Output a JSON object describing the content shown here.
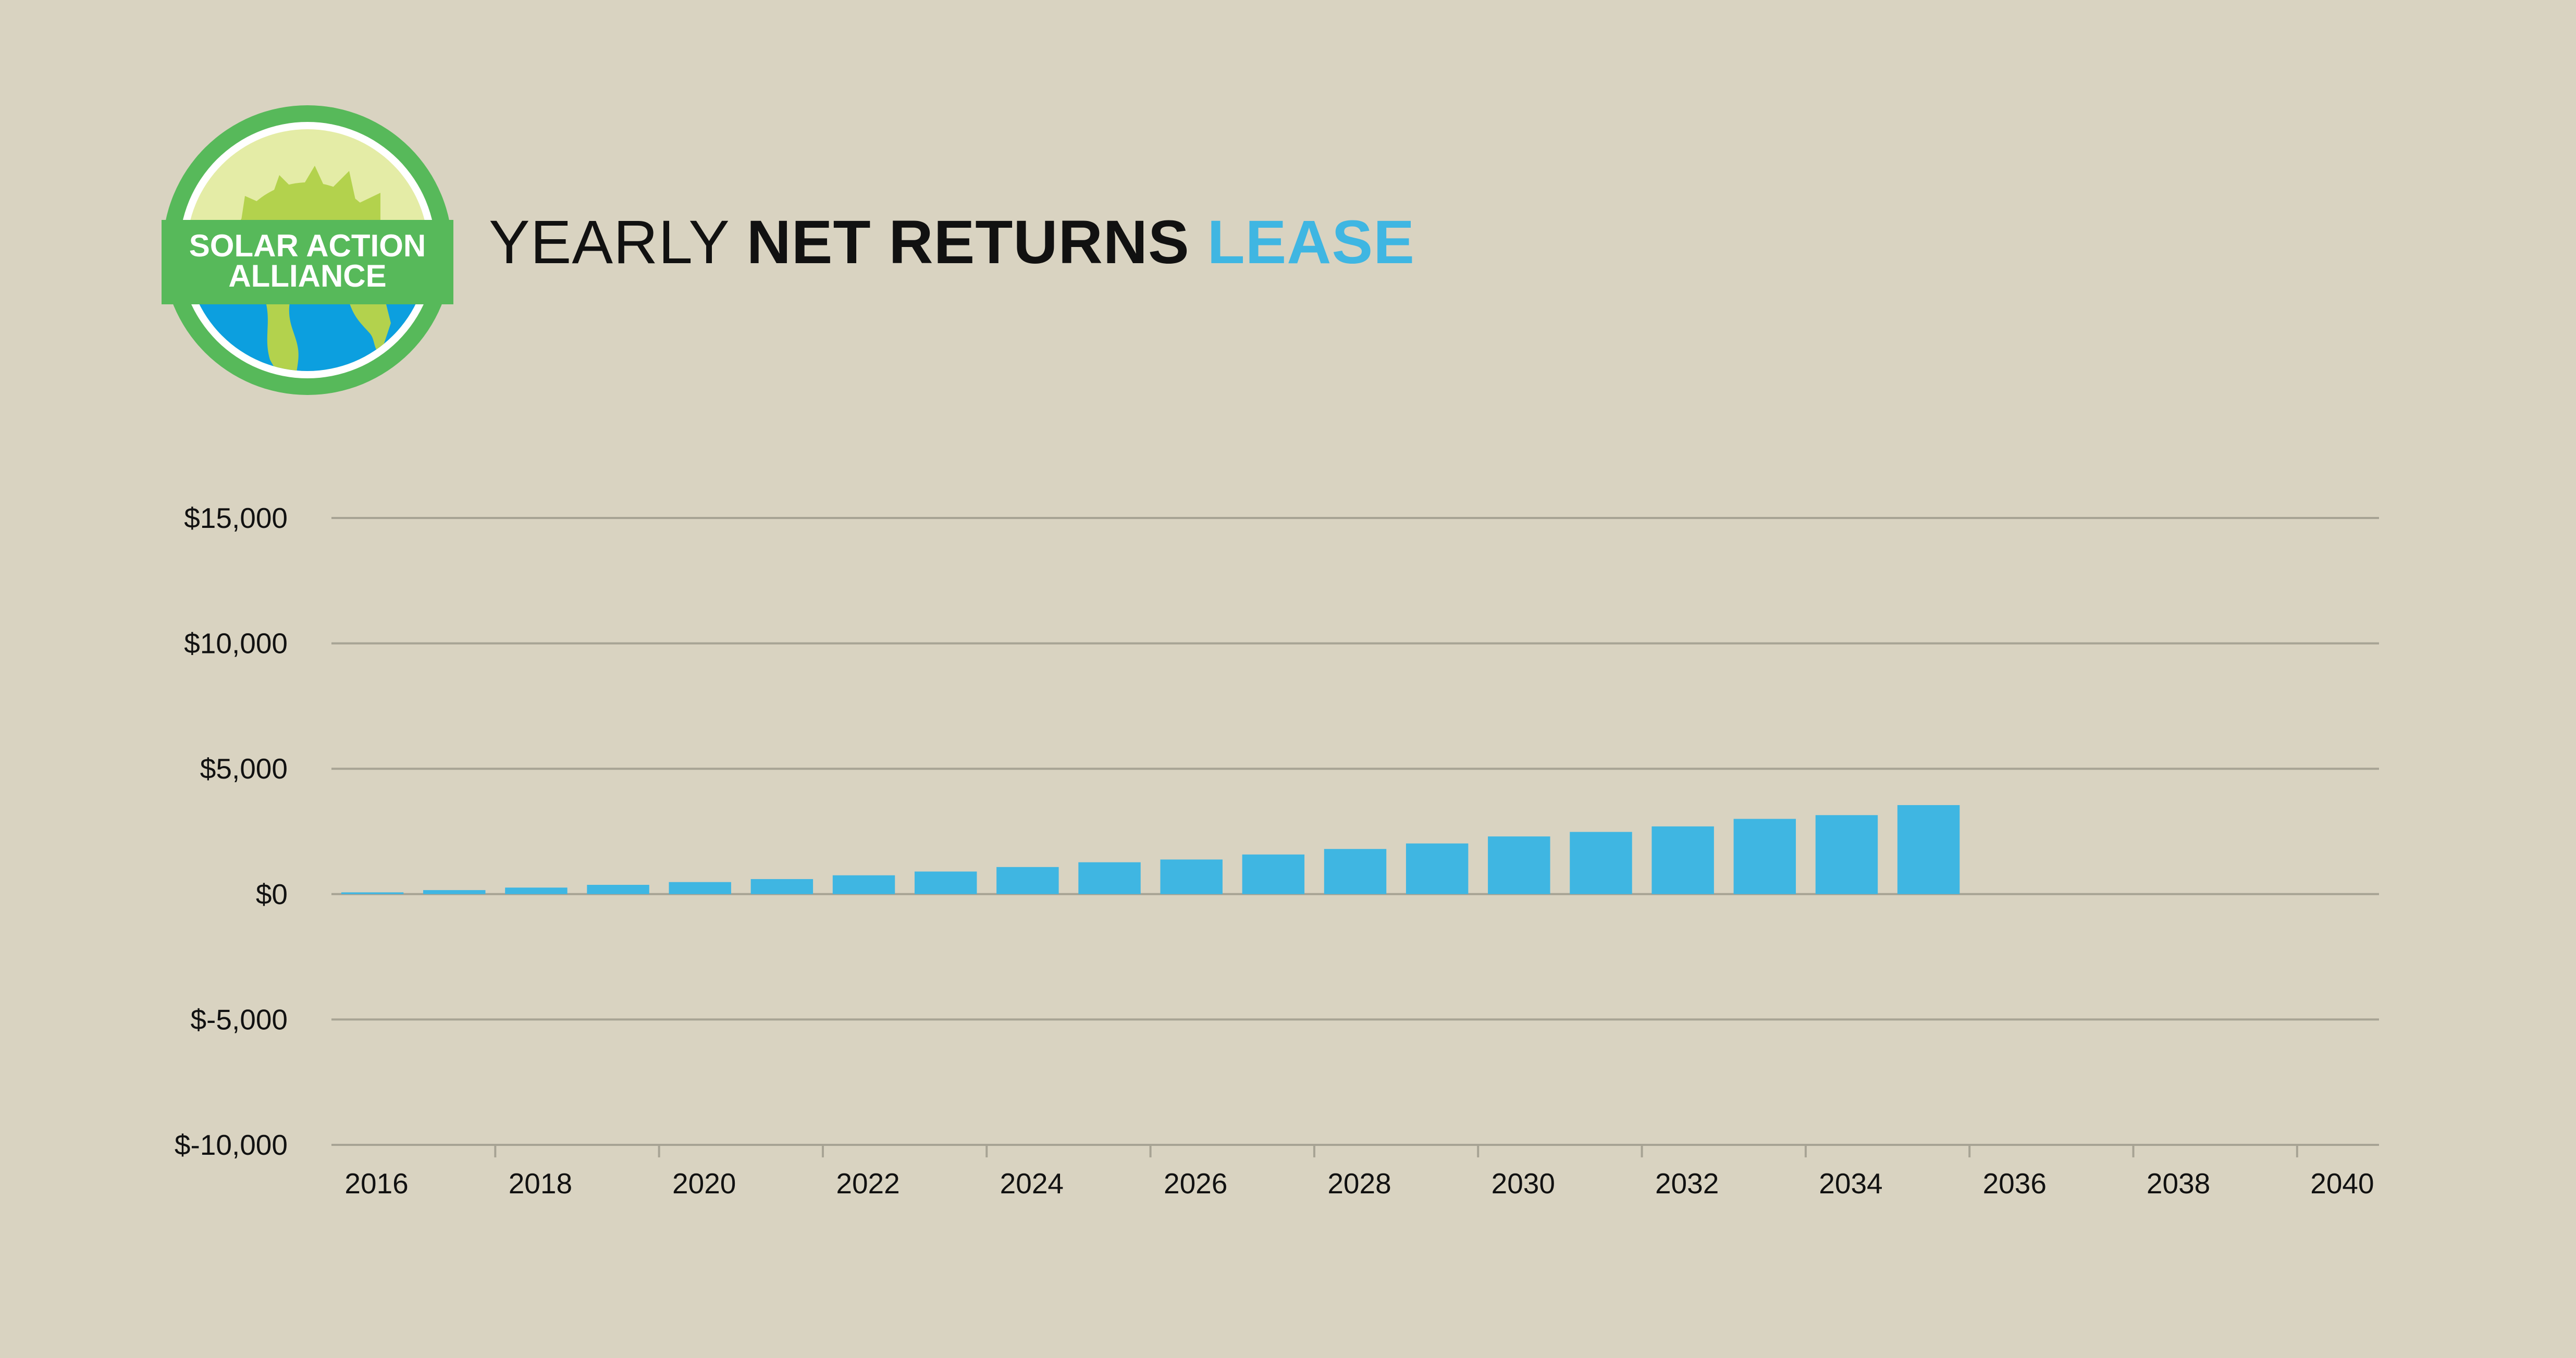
{
  "logo": {
    "line1": "SOLAR ACTION",
    "line2": "ALLIANCE",
    "ring_color": "#57b95a",
    "sun_color": "#b3d24d",
    "earth_color": "#0c9fdf"
  },
  "title": {
    "part1": "YEARLY ",
    "part2": "NET RETURNS ",
    "part3": "LEASE"
  },
  "colors": {
    "background": "#d9d3c1",
    "bar": "#3fb6e2",
    "grid": "#a7a394",
    "text": "#111111"
  },
  "chart_data": {
    "type": "bar",
    "ylim": [
      -10000,
      15000
    ],
    "yticks": [
      15000,
      10000,
      5000,
      0,
      -5000,
      -10000
    ],
    "ytick_labels": [
      "$15,000",
      "$10,000",
      "$5,000",
      "$0",
      "$-5,000",
      "$-10,000"
    ],
    "xtick_labels": [
      "2016",
      "2018",
      "2020",
      "2022",
      "2024",
      "2026",
      "2028",
      "2030",
      "2032",
      "2034",
      "2036",
      "2038",
      "2040"
    ],
    "categories": [
      "2016",
      "2017",
      "2018",
      "2019",
      "2020",
      "2021",
      "2022",
      "2023",
      "2024",
      "2025",
      "2026",
      "2027",
      "2028",
      "2029",
      "2030",
      "2031",
      "2032",
      "2033",
      "2034",
      "2035",
      "2036",
      "2037",
      "2038",
      "2039",
      "2040"
    ],
    "values": [
      70,
      160,
      260,
      370,
      480,
      600,
      750,
      900,
      1080,
      1270,
      1380,
      1580,
      1800,
      2020,
      2300,
      2480,
      2700,
      3000,
      3150,
      3550,
      null,
      null,
      null,
      null,
      null
    ],
    "grid": true
  }
}
